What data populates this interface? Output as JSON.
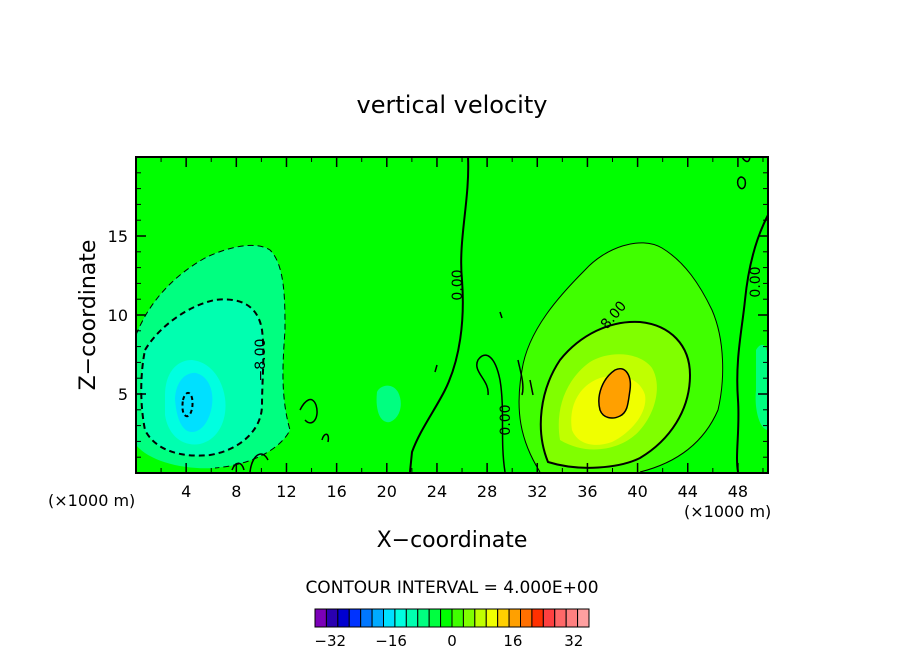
{
  "chart_data": {
    "type": "heatmap",
    "title": "vertical velocity",
    "xlabel": "X−coordinate",
    "ylabel": "Z−coordinate",
    "x_unit_left": "(×1000 m)",
    "x_unit_right": "(×1000 m)",
    "xlim": [
      0,
      50.4
    ],
    "ylim": [
      0,
      20
    ],
    "x_ticks": [
      4,
      8,
      12,
      16,
      20,
      24,
      28,
      32,
      36,
      40,
      44,
      48
    ],
    "y_ticks": [
      5,
      10,
      15
    ],
    "contour_interval_label": "CONTOUR INTERVAL = 4.000E+00",
    "contour_labels": [
      "0.00",
      "0.00",
      "0.00",
      "0.00",
      "−8.00",
      "8.00"
    ],
    "colorbar": {
      "min": -36,
      "max": 36,
      "step": 4,
      "tick_values": [
        -32,
        -16,
        0,
        16,
        32
      ],
      "tick_labels": [
        "−32",
        "−16",
        "0",
        "16",
        "32"
      ],
      "colors": [
        "#7b00b8",
        "#2a00b0",
        "#0000d0",
        "#0033ff",
        "#0077ff",
        "#00aaff",
        "#00e0ff",
        "#00ffe0",
        "#00ffb0",
        "#00ff80",
        "#00ff40",
        "#00ff00",
        "#40ff00",
        "#80ff00",
        "#c0ff00",
        "#f0ff00",
        "#ffd000",
        "#ffa000",
        "#ff7000",
        "#ff3000",
        "#ff4040",
        "#ff6868",
        "#ff8080",
        "#ffa0a0"
      ]
    },
    "features": [
      {
        "kind": "downdraft",
        "x": 4.4,
        "z": 4.3,
        "min_value": -18
      },
      {
        "kind": "updraft",
        "x": 37.5,
        "z": 5.0,
        "max_value": 18
      }
    ],
    "background_value": 0
  }
}
